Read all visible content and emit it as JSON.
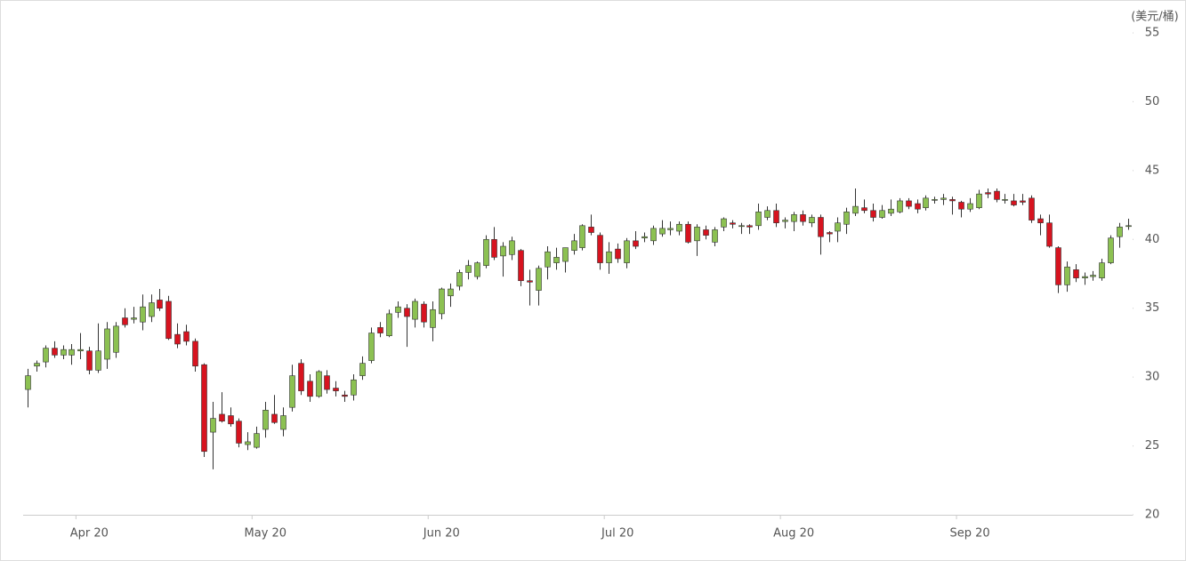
{
  "chart_data": {
    "type": "candlestick",
    "ylabel": "(美元/桶)",
    "ylim": [
      20,
      55
    ],
    "yticks": [
      20,
      25,
      30,
      35,
      40,
      45,
      50,
      55
    ],
    "up_color": "#8cc152",
    "down_color": "#d7131f",
    "categories": [
      null,
      null,
      null,
      null,
      null,
      null,
      "Apr 20",
      null,
      null,
      null,
      null,
      null,
      null,
      null,
      null,
      null,
      null,
      null,
      null,
      null,
      null,
      null,
      null,
      null,
      null,
      null,
      "May 20",
      null,
      null,
      null,
      null,
      null,
      null,
      null,
      null,
      null,
      null,
      null,
      null,
      null,
      null,
      null,
      null,
      null,
      null,
      null,
      "Jun 20",
      null,
      null,
      null,
      null,
      null,
      null,
      null,
      null,
      null,
      null,
      null,
      null,
      null,
      null,
      null,
      null,
      null,
      null,
      null,
      "Jul 20",
      null,
      null,
      null,
      null,
      null,
      null,
      null,
      null,
      null,
      null,
      null,
      null,
      null,
      null,
      null,
      null,
      null,
      null,
      null,
      "Aug 20",
      null,
      null,
      null,
      null,
      null,
      null,
      null,
      null,
      null,
      null,
      null,
      null,
      null,
      null,
      null,
      null,
      null,
      null,
      null,
      "Sep 20",
      null,
      null,
      null,
      null,
      null,
      null,
      null,
      null,
      null,
      null,
      null,
      null,
      null,
      null,
      null,
      null,
      null,
      null,
      null
    ],
    "open": [
      29.1,
      30.8,
      31.1,
      32.1,
      31.6,
      31.6,
      31.9,
      31.9,
      30.5,
      31.3,
      31.8,
      34.3,
      34.2,
      34.0,
      34.4,
      35.6,
      35.5,
      33.1,
      33.3,
      32.6,
      30.9,
      26.0,
      27.3,
      27.2,
      26.8,
      25.1,
      24.9,
      26.2,
      27.3,
      26.2,
      27.8,
      31.0,
      29.7,
      28.6,
      30.1,
      29.2,
      28.7,
      28.7,
      30.1,
      31.2,
      33.6,
      33.0,
      34.7,
      35.0,
      34.2,
      35.3,
      33.6,
      34.6,
      35.9,
      36.6,
      37.6,
      37.3,
      38.1,
      40.0,
      38.8,
      38.9,
      39.2,
      37.0,
      36.3,
      38.0,
      38.3,
      38.4,
      39.2,
      39.4,
      40.9,
      40.3,
      38.3,
      39.3,
      38.3,
      39.9,
      40.1,
      39.9,
      40.4,
      40.7,
      40.6,
      41.1,
      39.9,
      40.7,
      39.8,
      40.9,
      41.2,
      41.0,
      41.0,
      41.0,
      41.6,
      42.1,
      41.3,
      41.3,
      41.8,
      41.2,
      41.6,
      40.5,
      40.6,
      41.1,
      41.9,
      42.3,
      42.1,
      41.6,
      41.9,
      42.0,
      42.8,
      42.6,
      42.3,
      42.9,
      42.9,
      42.9,
      42.7,
      42.2,
      42.3,
      43.4,
      43.5,
      42.9,
      42.8,
      42.8,
      43.0,
      41.5,
      41.2,
      39.4,
      36.7,
      37.8,
      37.2,
      37.3,
      37.2,
      38.3,
      40.2,
      41.0
    ],
    "high": [
      30.6,
      31.2,
      32.3,
      32.6,
      32.3,
      32.4,
      33.2,
      32.2,
      33.9,
      34.0,
      34.0,
      35.0,
      35.1,
      36.0,
      36.0,
      36.4,
      35.9,
      33.9,
      33.8,
      32.8,
      31.0,
      28.2,
      28.9,
      27.8,
      27.0,
      26.0,
      26.4,
      28.2,
      28.7,
      27.8,
      30.9,
      31.3,
      30.2,
      30.5,
      30.5,
      29.7,
      29.0,
      30.2,
      31.5,
      33.6,
      34.0,
      34.9,
      35.5,
      35.3,
      35.7,
      35.5,
      35.5,
      36.5,
      36.8,
      37.8,
      38.5,
      38.4,
      40.3,
      40.9,
      39.8,
      40.2,
      39.3,
      37.8,
      38.1,
      39.5,
      39.4,
      39.4,
      40.4,
      41.1,
      41.8,
      40.5,
      39.8,
      39.7,
      40.1,
      40.6,
      40.5,
      41.0,
      41.4,
      41.3,
      41.3,
      41.3,
      41.1,
      41.0,
      40.9,
      41.6,
      41.4,
      41.2,
      41.1,
      42.6,
      42.4,
      42.6,
      41.6,
      42.0,
      42.1,
      41.8,
      41.8,
      40.6,
      41.6,
      42.3,
      43.7,
      42.9,
      42.6,
      42.5,
      42.9,
      43.0,
      43.0,
      42.9,
      43.2,
      43.1,
      43.3,
      43.1,
      42.8,
      43.0,
      43.6,
      43.7,
      43.7,
      43.3,
      43.3,
      43.3,
      43.2,
      41.8,
      41.8,
      39.5,
      38.4,
      38.2,
      37.6,
      37.7,
      38.6,
      40.3,
      41.2,
      41.5
    ],
    "low": [
      27.8,
      30.4,
      30.7,
      31.4,
      31.3,
      30.9,
      31.3,
      30.2,
      30.3,
      30.6,
      31.4,
      33.6,
      33.9,
      33.4,
      34.0,
      34.8,
      32.7,
      32.1,
      32.3,
      30.4,
      24.2,
      23.3,
      26.7,
      26.4,
      24.9,
      24.7,
      24.8,
      25.6,
      26.6,
      25.7,
      27.5,
      28.7,
      28.2,
      28.5,
      28.8,
      28.6,
      28.2,
      28.3,
      29.8,
      31.0,
      32.9,
      32.9,
      34.3,
      32.2,
      33.6,
      33.6,
      32.6,
      34.2,
      35.1,
      36.3,
      37.1,
      37.1,
      37.9,
      38.5,
      37.3,
      38.5,
      36.6,
      35.2,
      35.2,
      37.1,
      37.8,
      37.6,
      38.9,
      39.2,
      40.3,
      37.8,
      37.5,
      38.3,
      37.9,
      39.3,
      39.8,
      39.6,
      40.2,
      40.3,
      40.3,
      39.7,
      38.8,
      40.0,
      39.5,
      40.6,
      40.8,
      40.4,
      40.4,
      40.7,
      41.4,
      40.9,
      40.8,
      40.6,
      41.0,
      40.9,
      38.9,
      39.8,
      39.8,
      40.4,
      41.7,
      41.9,
      41.3,
      41.5,
      41.7,
      41.9,
      42.2,
      41.9,
      42.1,
      42.6,
      42.5,
      41.8,
      41.6,
      42.0,
      42.2,
      43.0,
      42.7,
      42.6,
      42.4,
      42.5,
      41.2,
      40.3,
      39.4,
      36.1,
      36.2,
      36.9,
      36.7,
      37.0,
      37.0,
      38.2,
      39.4,
      40.7
    ],
    "close": [
      30.1,
      31.0,
      32.1,
      31.6,
      32.0,
      32.0,
      32.0,
      30.5,
      31.9,
      33.5,
      33.7,
      33.8,
      34.3,
      35.1,
      35.4,
      35.0,
      32.8,
      32.4,
      32.6,
      30.8,
      24.6,
      27.0,
      26.8,
      26.6,
      25.2,
      25.3,
      25.9,
      27.6,
      26.7,
      27.2,
      30.1,
      29.0,
      28.6,
      30.4,
      29.1,
      29.0,
      28.6,
      29.8,
      31.0,
      33.2,
      33.2,
      34.6,
      35.1,
      34.4,
      35.5,
      34.0,
      34.9,
      36.4,
      36.4,
      37.6,
      38.1,
      38.3,
      40.0,
      38.7,
      39.5,
      39.9,
      37.0,
      36.9,
      37.9,
      39.1,
      38.7,
      39.4,
      39.9,
      41.0,
      40.5,
      38.3,
      39.1,
      38.6,
      39.9,
      39.5,
      40.2,
      40.8,
      40.8,
      40.8,
      41.1,
      39.8,
      40.9,
      40.3,
      40.7,
      41.5,
      41.1,
      41.0,
      40.9,
      42.0,
      42.1,
      41.2,
      41.4,
      41.8,
      41.3,
      41.6,
      40.2,
      40.4,
      41.2,
      42.0,
      42.4,
      42.1,
      41.6,
      42.1,
      42.2,
      42.8,
      42.4,
      42.2,
      43.0,
      42.9,
      43.0,
      42.8,
      42.2,
      42.6,
      43.3,
      43.3,
      42.9,
      42.9,
      42.5,
      42.7,
      41.4,
      41.2,
      39.5,
      36.7,
      38.0,
      37.2,
      37.3,
      37.4,
      38.3,
      40.1,
      40.9,
      41.0
    ]
  }
}
